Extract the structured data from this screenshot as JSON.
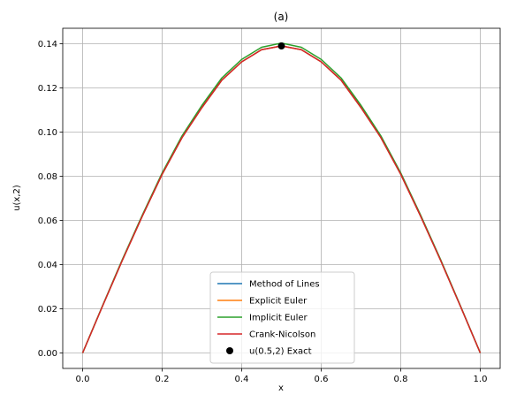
{
  "chart_data": {
    "type": "line",
    "title": "(a)",
    "xlabel": "x",
    "ylabel": "u(x,2)",
    "xlim": [
      -0.05,
      1.05
    ],
    "ylim": [
      -0.007,
      0.147
    ],
    "xticks": [
      "0.0",
      "0.2",
      "0.4",
      "0.6",
      "0.8",
      "1.0"
    ],
    "yticks": [
      "0.00",
      "0.02",
      "0.04",
      "0.06",
      "0.08",
      "0.10",
      "0.12",
      "0.14"
    ],
    "grid": true,
    "legend_position": "lower center",
    "x": [
      0.0,
      0.05,
      0.1,
      0.15,
      0.2,
      0.25,
      0.3,
      0.35,
      0.4,
      0.45,
      0.5,
      0.55,
      0.6,
      0.65,
      0.7,
      0.75,
      0.8,
      0.85,
      0.9,
      0.95,
      1.0
    ],
    "series": [
      {
        "name": "Method of Lines",
        "color": "#1f77b4",
        "values": [
          0.0,
          0.0212,
          0.042,
          0.0619,
          0.0809,
          0.0975,
          0.1111,
          0.1235,
          0.1318,
          0.1373,
          0.139,
          0.1373,
          0.1318,
          0.1235,
          0.1111,
          0.0975,
          0.0809,
          0.0619,
          0.042,
          0.0212,
          0.0
        ]
      },
      {
        "name": "Explicit Euler",
        "color": "#ff7f0e",
        "values": [
          0.0,
          0.0212,
          0.042,
          0.0619,
          0.0809,
          0.0975,
          0.1111,
          0.1235,
          0.1318,
          0.1373,
          0.139,
          0.1373,
          0.1318,
          0.1235,
          0.1111,
          0.0975,
          0.0809,
          0.0619,
          0.042,
          0.0212,
          0.0
        ]
      },
      {
        "name": "Implicit Euler",
        "color": "#2ca02c",
        "values": [
          0.0,
          0.0214,
          0.0424,
          0.0624,
          0.0815,
          0.0983,
          0.1121,
          0.1245,
          0.1329,
          0.1384,
          0.1403,
          0.1384,
          0.1329,
          0.1245,
          0.1121,
          0.0983,
          0.0815,
          0.0624,
          0.0424,
          0.0214,
          0.0
        ]
      },
      {
        "name": "Crank-Nicolson",
        "color": "#d62728",
        "values": [
          0.0,
          0.0212,
          0.042,
          0.0619,
          0.0809,
          0.0975,
          0.1111,
          0.1235,
          0.1318,
          0.1373,
          0.139,
          0.1373,
          0.1318,
          0.1235,
          0.1111,
          0.0975,
          0.0809,
          0.0619,
          0.042,
          0.0212,
          0.0
        ]
      }
    ],
    "points": [
      {
        "name": "u(0.5,2) Exact",
        "color": "#000000",
        "x": 0.5,
        "y": 0.139
      }
    ]
  }
}
